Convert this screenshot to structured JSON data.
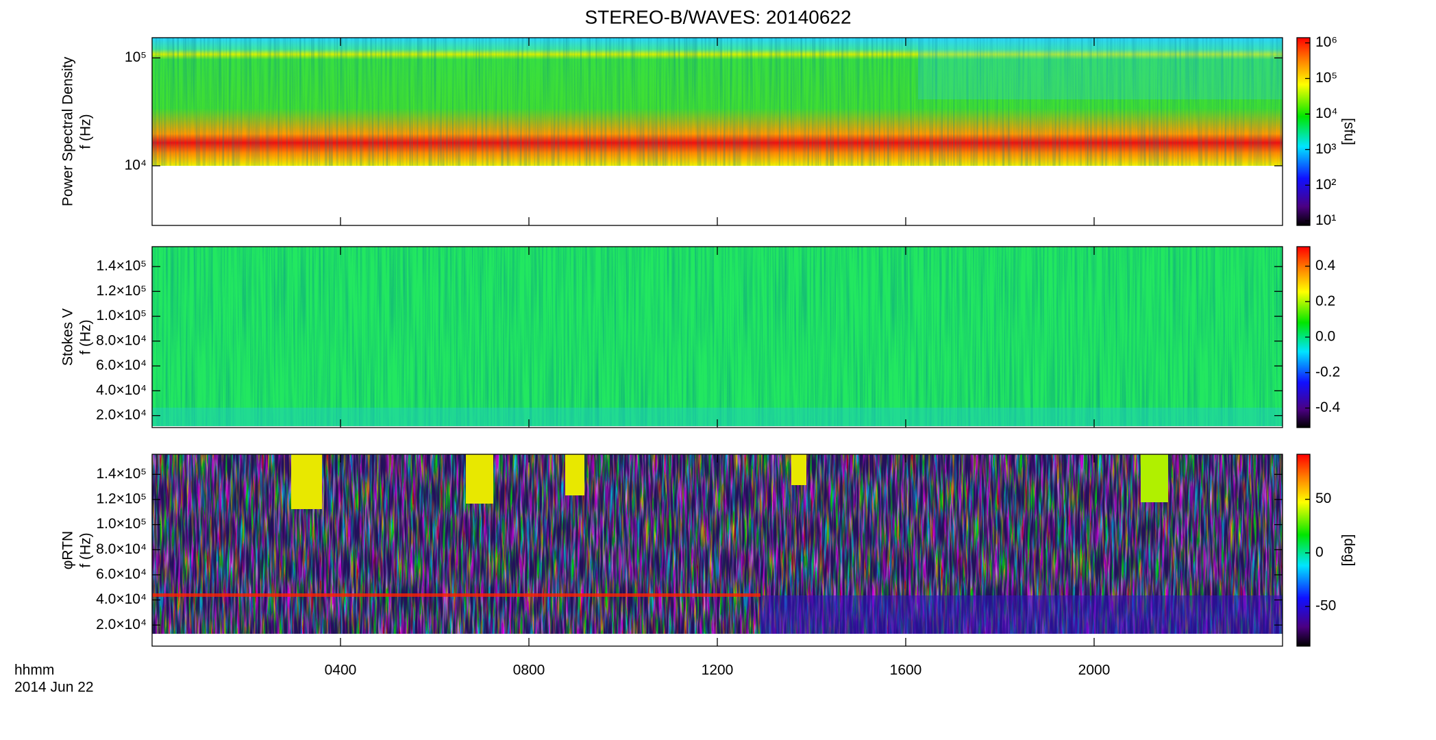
{
  "title": "STEREO-B/WAVES: 20140622",
  "xlabel": [
    "hhmm",
    "2014 Jun 22"
  ],
  "xlim": [
    0,
    24
  ],
  "xticks": [
    {
      "value": 4,
      "label": "0400"
    },
    {
      "value": 8,
      "label": "0800"
    },
    {
      "value": 12,
      "label": "1200"
    },
    {
      "value": 16,
      "label": "1600"
    },
    {
      "value": 20,
      "label": "2000"
    }
  ],
  "chart_data": [
    {
      "type": "heatmap",
      "ylabel": [
        "Power Spectral Density",
        "f (Hz)"
      ],
      "ylog": true,
      "ylim": [
        2800,
        154000
      ],
      "yticks": [
        {
          "value": 10000,
          "label": "10⁴"
        },
        {
          "value": 100000,
          "label": "10⁵"
        }
      ],
      "colorbar": {
        "log": true,
        "lim": [
          7.4,
          1400000
        ],
        "label": "[sfu]",
        "ticks": [
          {
            "value": 10,
            "label": "10¹"
          },
          {
            "value": 100,
            "label": "10²"
          },
          {
            "value": 1000,
            "label": "10³"
          },
          {
            "value": 10000,
            "label": "10⁴"
          },
          {
            "value": 100000,
            "label": "10⁵"
          },
          {
            "value": 1000000,
            "label": "10⁶"
          }
        ]
      }
    },
    {
      "type": "heatmap",
      "ylabel": [
        "Stokes V",
        "f (Hz)"
      ],
      "ylog": false,
      "ylim": [
        10400,
        156000
      ],
      "yticks": [
        {
          "value": 20000,
          "label": "2.0×10⁴"
        },
        {
          "value": 40000,
          "label": "4.0×10⁴"
        },
        {
          "value": 60000,
          "label": "6.0×10⁴"
        },
        {
          "value": 80000,
          "label": "8.0×10⁴"
        },
        {
          "value": 100000,
          "label": "1.0×10⁵"
        },
        {
          "value": 120000,
          "label": "1.2×10⁵"
        },
        {
          "value": 140000,
          "label": "1.4×10⁵"
        }
      ],
      "colorbar": {
        "log": false,
        "lim": [
          -0.51,
          0.51
        ],
        "ticks": [
          -0.4,
          -0.2,
          {
            "value": 0,
            "label": "0.0"
          },
          0.2,
          0.4
        ]
      }
    },
    {
      "type": "heatmap",
      "ylabel": [
        "φRTN",
        "f (Hz)"
      ],
      "ylog": false,
      "ylim": [
        3200,
        156000
      ],
      "yticks": [
        {
          "value": 20000,
          "label": "2.0×10⁴"
        },
        {
          "value": 40000,
          "label": "4.0×10⁴"
        },
        {
          "value": 60000,
          "label": "6.0×10⁴"
        },
        {
          "value": 80000,
          "label": "8.0×10⁴"
        },
        {
          "value": 100000,
          "label": "1.0×10⁵"
        },
        {
          "value": 120000,
          "label": "1.2×10⁵"
        },
        {
          "value": 140000,
          "label": "1.4×10⁵"
        }
      ],
      "colorbar": {
        "log": false,
        "lim": [
          -87,
          92
        ],
        "label": "[deg]",
        "ticks": [
          -50,
          0,
          50
        ]
      }
    }
  ]
}
